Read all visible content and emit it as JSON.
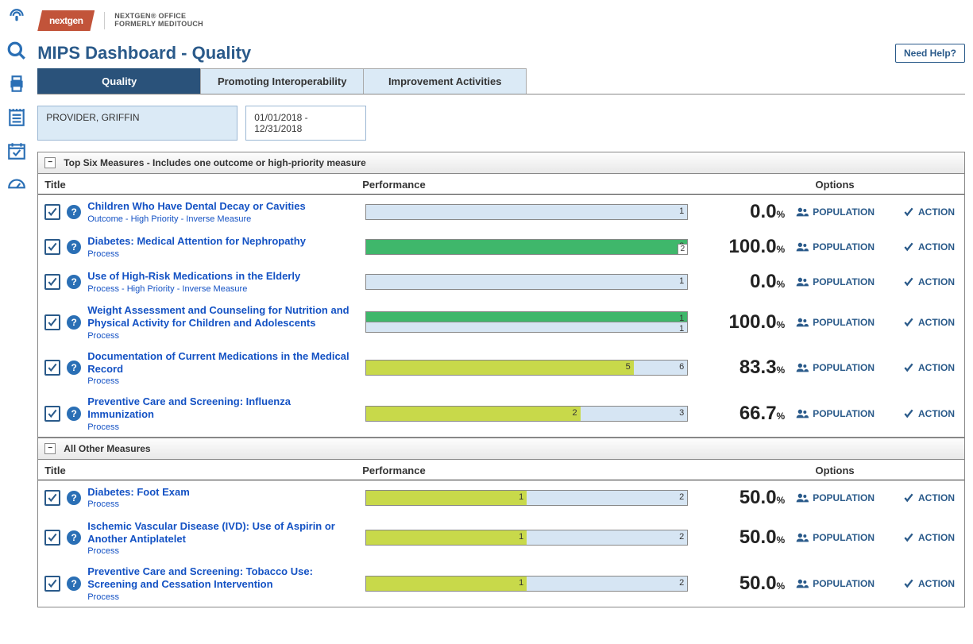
{
  "brand": {
    "logo": "nextgen",
    "subtitle_line1": "NEXTGEN® OFFICE",
    "subtitle_line2": "FORMERLY MEDITOUCH"
  },
  "page_title": "MIPS Dashboard - Quality",
  "help_button": "Need Help?",
  "tabs": [
    {
      "label": "Quality",
      "active": true
    },
    {
      "label": "Promoting Interoperability",
      "active": false
    },
    {
      "label": "Improvement Activities",
      "active": false
    }
  ],
  "filters": {
    "provider": "PROVIDER, GRIFFIN",
    "date_range": "01/01/2018 - 12/31/2018"
  },
  "columns": {
    "title": "Title",
    "performance": "Performance",
    "options": "Options"
  },
  "option_labels": {
    "population": "POPULATION",
    "action": "ACTION"
  },
  "colors": {
    "bar_bg": "#d6e5f3",
    "bar_green": "#3fb76b",
    "bar_yellow": "#c8d94a",
    "accent": "#2a5a8a",
    "link": "#1452c4"
  },
  "sections": [
    {
      "header": "Top Six Measures - Includes one outcome or high-priority measure",
      "rows": [
        {
          "title": "Children Who Have Dental Decay or Cavities",
          "subtitle": "Outcome - High Priority - Inverse Measure",
          "fill_pct": 0,
          "fill_color": "#d6e5f3",
          "numerator": null,
          "denominator": "1",
          "denom_pos": "right",
          "pct": "0.0",
          "stacked": false
        },
        {
          "title": "Diabetes: Medical Attention for Nephropathy",
          "subtitle": "Process",
          "fill_pct": 100,
          "fill_color": "#3fb76b",
          "numerator": "2",
          "denominator": "2",
          "denom_pos": "badge",
          "pct": "100.0",
          "stacked": false
        },
        {
          "title": "Use of High-Risk Medications in the Elderly",
          "subtitle": "Process - High Priority - Inverse Measure",
          "fill_pct": 0,
          "fill_color": "#d6e5f3",
          "numerator": null,
          "denominator": "1",
          "denom_pos": "right",
          "pct": "0.0",
          "stacked": false
        },
        {
          "title": "Weight Assessment and Counseling for Nutrition and Physical Activity for Children and Adolescents",
          "subtitle": "Process",
          "fill_pct": 100,
          "fill_color": "#3fb76b",
          "numerator": "1",
          "denominator": "1",
          "denom_pos": "badge",
          "pct": "100.0",
          "stacked": true
        },
        {
          "title": "Documentation of Current Medications in the Medical Record",
          "subtitle": "Process",
          "fill_pct": 83.3,
          "fill_color": "#c8d94a",
          "numerator": "5",
          "denominator": "6",
          "denom_pos": "right",
          "pct": "83.3",
          "stacked": false
        },
        {
          "title": "Preventive Care and Screening: Influenza Immunization",
          "subtitle": "Process",
          "fill_pct": 66.7,
          "fill_color": "#c8d94a",
          "numerator": "2",
          "denominator": "3",
          "denom_pos": "right",
          "pct": "66.7",
          "stacked": false
        }
      ]
    },
    {
      "header": "All Other Measures",
      "rows": [
        {
          "title": "Diabetes: Foot Exam",
          "subtitle": "Process",
          "fill_pct": 50,
          "fill_color": "#c8d94a",
          "numerator": "1",
          "denominator": "2",
          "denom_pos": "right",
          "pct": "50.0",
          "stacked": false
        },
        {
          "title": "Ischemic Vascular Disease (IVD): Use of Aspirin or Another Antiplatelet",
          "subtitle": "Process",
          "fill_pct": 50,
          "fill_color": "#c8d94a",
          "numerator": "1",
          "denominator": "2",
          "denom_pos": "right",
          "pct": "50.0",
          "stacked": false
        },
        {
          "title": "Preventive Care and Screening: Tobacco Use: Screening and Cessation Intervention",
          "subtitle": "Process",
          "fill_pct": 50,
          "fill_color": "#c8d94a",
          "numerator": "1",
          "denominator": "2",
          "denom_pos": "right",
          "pct": "50.0",
          "stacked": false
        }
      ]
    }
  ]
}
